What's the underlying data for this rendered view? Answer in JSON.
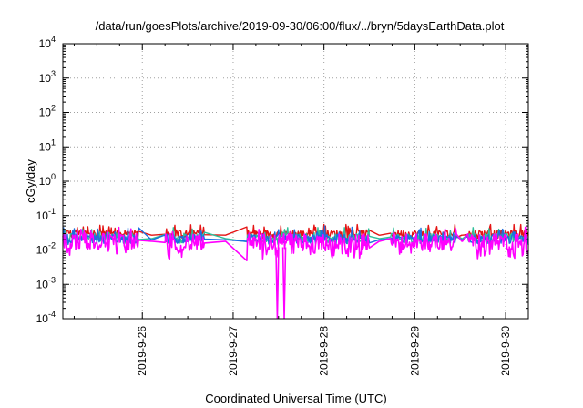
{
  "chart_data": {
    "type": "line",
    "title": "/data/run/goesPlots/archive/2019-09-30/06:00/flux/../bryn/5daysEarthData.plot",
    "xlabel": "Coordinated Universal Time (UTC)",
    "ylabel": "cGy/day",
    "yscale": "log",
    "ylim": [
      0.0001,
      10000
    ],
    "y_ticks": [
      {
        "value": 10000,
        "base": "10",
        "exp": "4"
      },
      {
        "value": 1000,
        "base": "10",
        "exp": "3"
      },
      {
        "value": 100,
        "base": "10",
        "exp": "2"
      },
      {
        "value": 10,
        "base": "10",
        "exp": "1"
      },
      {
        "value": 1,
        "base": "10",
        "exp": "0"
      },
      {
        "value": 0.1,
        "base": "10",
        "exp": "-1"
      },
      {
        "value": 0.01,
        "base": "10",
        "exp": "-2"
      },
      {
        "value": 0.001,
        "base": "10",
        "exp": "-3"
      },
      {
        "value": 0.0001,
        "base": "10",
        "exp": "-4"
      }
    ],
    "xlim": [
      "2019-09-25 03:00",
      "2019-09-30 06:00"
    ],
    "x_ticks": [
      {
        "label": "2019-9-26",
        "value": "2019-09-26 00:00"
      },
      {
        "label": "2019-9-27",
        "value": "2019-09-27 00:00"
      },
      {
        "label": "2019-9-28",
        "value": "2019-09-28 00:00"
      },
      {
        "label": "2019-9-29",
        "value": "2019-09-29 00:00"
      },
      {
        "label": "2019-9-30",
        "value": "2019-09-30 00:00"
      }
    ],
    "grid": true,
    "gaps": [
      {
        "start": "2019-09-25 23:00",
        "end": "2019-09-26 06:00"
      },
      {
        "start": "2019-09-26 16:30",
        "end": "2019-09-27 03:30"
      },
      {
        "start": "2019-09-28 12:00",
        "end": "2019-09-28 17:30"
      },
      {
        "start": "2019-09-29 11:00",
        "end": "2019-09-29 14:00"
      }
    ],
    "dropouts": [
      {
        "time": "2019-09-27 11:40",
        "y_min": 0.0001
      },
      {
        "time": "2019-09-27 13:30",
        "y_min": 0.0001
      }
    ],
    "series": [
      {
        "color": "#e51414",
        "level": 0.03,
        "spread": 0.55,
        "dip_depth": 0.0,
        "spike_max": 0.055
      },
      {
        "color": "#2fbf9a",
        "level": 0.024,
        "spread": 0.5,
        "dip_depth": 0.35,
        "spike_max": 0.045
      },
      {
        "color": "#1c6fe0",
        "level": 0.022,
        "spread": 0.6,
        "dip_depth": 0.15,
        "spike_max": 0.05
      },
      {
        "color": "#ff00ff",
        "level": 0.02,
        "spread": 1.0,
        "dip_depth": 0.85,
        "spike_max": 0.05,
        "floor": 0.0035
      }
    ]
  }
}
